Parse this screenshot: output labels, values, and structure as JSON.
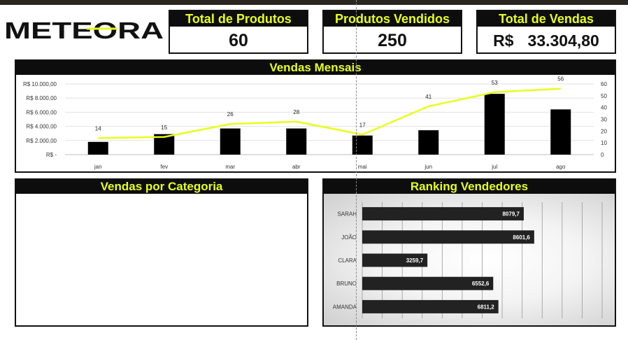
{
  "logo_text": "METEORA",
  "colors": {
    "accent": "#e8ff1a",
    "bar": "#000000",
    "header_bg": "#0d0d0d",
    "rank_bar": "#222222"
  },
  "kpis": {
    "produtos": {
      "label": "Total de Produtos",
      "value": "60"
    },
    "vendidos": {
      "label": "Produtos Vendidos",
      "value": "250"
    },
    "vendas": {
      "label": "Total de Vendas",
      "currency": "R$",
      "value": "33.304,80"
    }
  },
  "panels": {
    "categoria_title": "Vendas por Categoria"
  },
  "chart_data": [
    {
      "type": "bar",
      "title": "Vendas Mensais",
      "categories": [
        "jan",
        "fev",
        "mar",
        "abr",
        "mai",
        "jun",
        "jul",
        "ago"
      ],
      "yticks": [
        "R$ -",
        "R$ 2.000,00",
        "R$ 4.000,00",
        "R$ 6.000,00",
        "R$ 8.000,00",
        "R$ 10.000,00"
      ],
      "ylim": [
        0,
        10000
      ],
      "y2ticks": [
        "0",
        "10",
        "20",
        "30",
        "40",
        "50",
        "60"
      ],
      "y2lim": [
        0,
        60
      ],
      "grid": true,
      "series": [
        {
          "type": "bar",
          "axis": "left",
          "values": [
            1800,
            2900,
            3700,
            3700,
            2700,
            3450,
            8600,
            6400
          ]
        },
        {
          "type": "line",
          "axis": "right",
          "values": [
            14,
            15,
            26,
            28,
            17,
            41,
            53,
            56
          ],
          "labels": [
            "14",
            "15",
            "26",
            "28",
            "17",
            "41",
            "53",
            "56"
          ]
        }
      ]
    },
    {
      "type": "bar",
      "orientation": "horizontal",
      "title": "Ranking Vendedores",
      "categories": [
        "SARAH",
        "JOÃO",
        "CLARA",
        "BRUNO",
        "AMANDA"
      ],
      "values": [
        8079.7,
        8601.6,
        3259.7,
        6552.6,
        6811.2
      ],
      "labels": [
        "8079,7",
        "8601,6",
        "3259,7",
        "6552,6",
        "6811,2"
      ],
      "xlim": [
        0,
        12000
      ],
      "grid": true
    }
  ]
}
